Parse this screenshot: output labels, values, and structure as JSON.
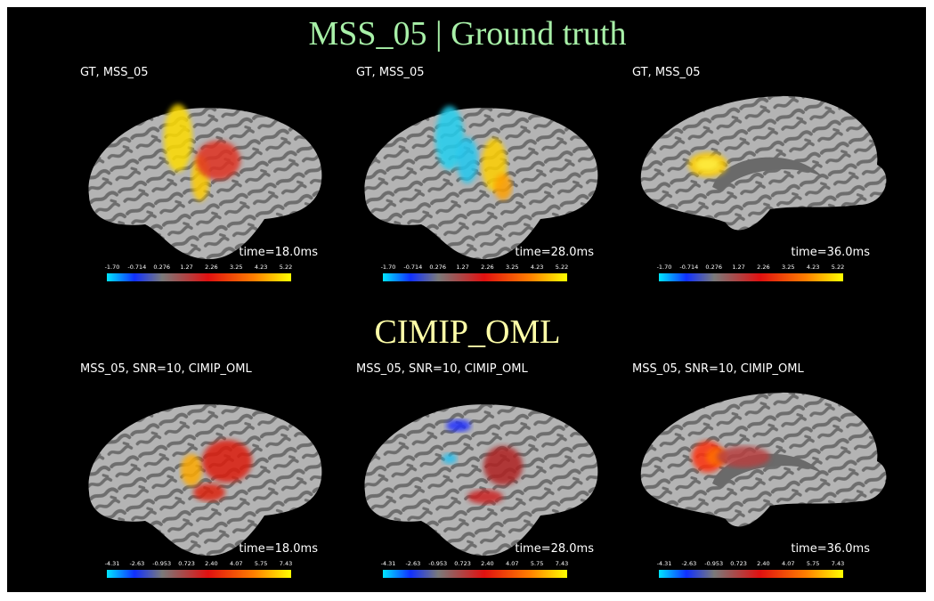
{
  "sections": [
    {
      "title": "MSS_05 | Ground truth",
      "panels": [
        {
          "label": "GT, MSS_05",
          "time": "time=18.0ms",
          "colorbar_ticks": [
            "-1.70",
            "-0.714",
            "0.276",
            "1.27",
            "2.26",
            "3.25",
            "4.23",
            "5.22"
          ]
        },
        {
          "label": "GT, MSS_05",
          "time": "time=28.0ms",
          "colorbar_ticks": [
            "-1.70",
            "-0.714",
            "0.276",
            "1.27",
            "2.26",
            "3.25",
            "4.23",
            "5.22"
          ]
        },
        {
          "label": "GT, MSS_05",
          "time": "time=36.0ms",
          "colorbar_ticks": [
            "-1.70",
            "-0.714",
            "0.276",
            "1.27",
            "2.26",
            "3.25",
            "4.23",
            "5.22"
          ]
        }
      ]
    },
    {
      "title": "CIMIP_OML",
      "panels": [
        {
          "label": "MSS_05, SNR=10, CIMIP_OML",
          "time": "time=18.0ms",
          "colorbar_ticks": [
            "-4.31",
            "-2.63",
            "-0.953",
            "0.723",
            "2.40",
            "4.07",
            "5.75",
            "7.43"
          ]
        },
        {
          "label": "MSS_05, SNR=10, CIMIP_OML",
          "time": "time=28.0ms",
          "colorbar_ticks": [
            "-4.31",
            "-2.63",
            "-0.953",
            "0.723",
            "2.40",
            "4.07",
            "5.75",
            "7.43"
          ]
        },
        {
          "label": "MSS_05, SNR=10, CIMIP_OML",
          "time": "time=36.0ms",
          "colorbar_ticks": [
            "-4.31",
            "-2.63",
            "-0.953",
            "0.723",
            "2.40",
            "4.07",
            "5.75",
            "7.43"
          ]
        }
      ]
    }
  ]
}
